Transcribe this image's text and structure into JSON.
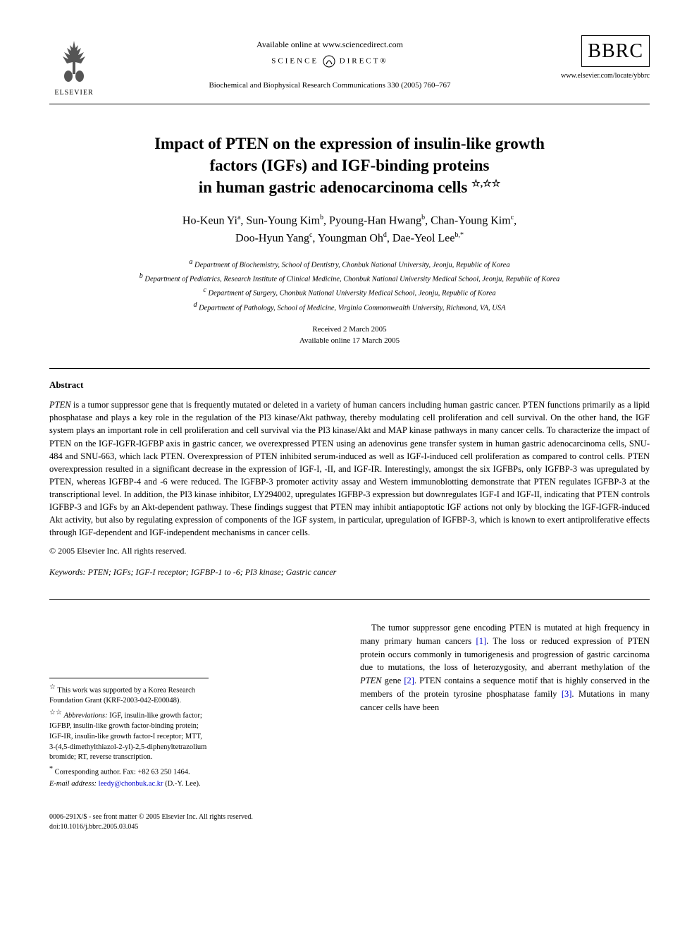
{
  "header": {
    "publisher_label": "ELSEVIER",
    "available_online": "Available online at www.sciencedirect.com",
    "science_direct": "SCIENCE",
    "science_direct_2": "DIRECT®",
    "journal_ref": "Biochemical and Biophysical Research Communications 330 (2005) 760–767",
    "bbrc": "BBRC",
    "journal_url": "www.elsevier.com/locate/ybbrc"
  },
  "title": {
    "line1": "Impact of PTEN on the expression of insulin-like growth",
    "line2": "factors (IGFs) and IGF-binding proteins",
    "line3": "in human gastric adenocarcinoma cells",
    "stars": "☆,☆☆"
  },
  "authors": {
    "a1": "Ho-Keun Yi",
    "a1_sup": "a",
    "a2": "Sun-Young Kim",
    "a2_sup": "b",
    "a3": "Pyoung-Han Hwang",
    "a3_sup": "b",
    "a4": "Chan-Young Kim",
    "a4_sup": "c",
    "a5": "Doo-Hyun Yang",
    "a5_sup": "c",
    "a6": "Youngman Oh",
    "a6_sup": "d",
    "a7": "Dae-Yeol Lee",
    "a7_sup": "b,*"
  },
  "affiliations": {
    "a": "Department of Biochemistry, School of Dentistry, Chonbuk National University, Jeonju, Republic of Korea",
    "b": "Department of Pediatrics, Research Institute of Clinical Medicine, Chonbuk National University Medical School, Jeonju, Republic of Korea",
    "c": "Department of Surgery, Chonbuk National University Medical School, Jeonju, Republic of Korea",
    "d": "Department of Pathology, School of Medicine, Virginia Commonwealth University, Richmond, VA, USA"
  },
  "dates": {
    "received": "Received 2 March 2005",
    "online": "Available online 17 March 2005"
  },
  "abstract": {
    "heading": "Abstract",
    "body_html": "<i>PTEN</i> is a tumor suppressor gene that is frequently mutated or deleted in a variety of human cancers including human gastric cancer. PTEN functions primarily as a lipid phosphatase and plays a key role in the regulation of the PI3 kinase/Akt pathway, thereby modulating cell proliferation and cell survival. On the other hand, the IGF system plays an important role in cell proliferation and cell survival via the PI3 kinase/Akt and MAP kinase pathways in many cancer cells. To characterize the impact of PTEN on the IGF-IGFR-IGFBP axis in gastric cancer, we overexpressed PTEN using an adenovirus gene transfer system in human gastric adenocarcinoma cells, SNU-484 and SNU-663, which lack PTEN. Overexpression of PTEN inhibited serum-induced as well as IGF-I-induced cell proliferation as compared to control cells. PTEN overexpression resulted in a significant decrease in the expression of IGF-I, -II, and IGF-IR. Interestingly, amongst the six IGFBPs, only IGFBP-3 was upregulated by PTEN, whereas IGFBP-4 and -6 were reduced. The IGFBP-3 promoter activity assay and Western immunoblotting demonstrate that PTEN regulates IGFBP-3 at the transcriptional level. In addition, the PI3 kinase inhibitor, LY294002, upregulates IGFBP-3 expression but downregulates IGF-I and IGF-II, indicating that PTEN controls IGFBP-3 and IGFs by an Akt-dependent pathway. These findings suggest that PTEN may inhibit antiapoptotic IGF actions not only by blocking the IGF-IGFR-induced Akt activity, but also by regulating expression of components of the IGF system, in particular, upregulation of IGFBP-3, which is known to exert antiproliferative effects through IGF-dependent and IGF-independent mechanisms in cancer cells.",
    "copyright": "© 2005 Elsevier Inc. All rights reserved."
  },
  "keywords": {
    "label": "Keywords:",
    "text": "PTEN; IGFs; IGF-I receptor; IGFBP-1 to -6; PI3 kinase; Gastric cancer"
  },
  "footnotes": {
    "grant": "This work was supported by a Korea Research Foundation Grant (KRF-2003-042-E00048).",
    "abbreviations_label": "Abbreviations:",
    "abbreviations": "IGF, insulin-like growth factor; IGFBP, insulin-like growth factor-binding protein; IGF-IR, insulin-like growth factor-I receptor; MTT, 3-(4,5-dimethylthiazol-2-yl)-2,5-diphenyltetrazolium bromide; RT, reverse transcription.",
    "corresponding": "Corresponding author. Fax: +82 63 250 1464.",
    "email_label": "E-mail address:",
    "email": "leedy@chonbuk.ac.kr",
    "email_suffix": "(D.-Y. Lee)."
  },
  "body": {
    "intro_html": "The tumor suppressor gene encoding PTEN is mutated at high frequency in many primary human cancers <span class=\"ref-link\">[1]</span>. The loss or reduced expression of PTEN protein occurs commonly in tumorigenesis and progression of gastric carcinoma due to mutations, the loss of heterozygosity, and aberrant methylation of the <i>PTEN</i> gene <span class=\"ref-link\">[2]</span>. PTEN contains a sequence motif that is highly conserved in the members of the protein tyrosine phosphatase family <span class=\"ref-link\">[3]</span>. Mutations in many cancer cells have been"
  },
  "footer": {
    "issn": "0006-291X/$ - see front matter © 2005 Elsevier Inc. All rights reserved.",
    "doi": "doi:10.1016/j.bbrc.2005.03.045"
  },
  "colors": {
    "text": "#000000",
    "link": "#0000cc",
    "background": "#ffffff"
  }
}
